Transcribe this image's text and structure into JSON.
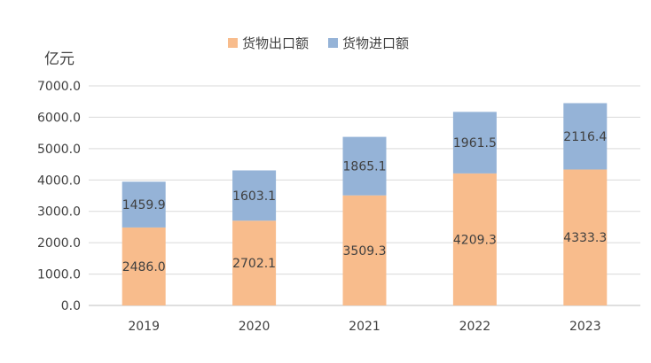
{
  "chart_data": {
    "type": "bar",
    "stacked": true,
    "title": "",
    "ylabel": "亿元",
    "xlabel": "",
    "categories": [
      "2019",
      "2020",
      "2021",
      "2022",
      "2023"
    ],
    "ylim": [
      0,
      7000
    ],
    "yticks": [
      "0.0",
      "1000.0",
      "2000.0",
      "3000.0",
      "4000.0",
      "5000.0",
      "6000.0",
      "7000.0"
    ],
    "grid": true,
    "legend_position": "top-center",
    "series": [
      {
        "name": "货物出口额",
        "color": "#F8BC8C",
        "values": [
          2486.0,
          2702.1,
          3509.3,
          4209.3,
          4333.3
        ],
        "labels": [
          "2486.0",
          "2702.1",
          "3509.3",
          "4209.3",
          "4333.3"
        ]
      },
      {
        "name": "货物进口额",
        "color": "#95B3D7",
        "values": [
          1459.9,
          1603.1,
          1865.1,
          1961.5,
          2116.4
        ],
        "labels": [
          "1459.9",
          "1603.1",
          "1865.1",
          "1961.5",
          "2116.4"
        ]
      }
    ]
  }
}
